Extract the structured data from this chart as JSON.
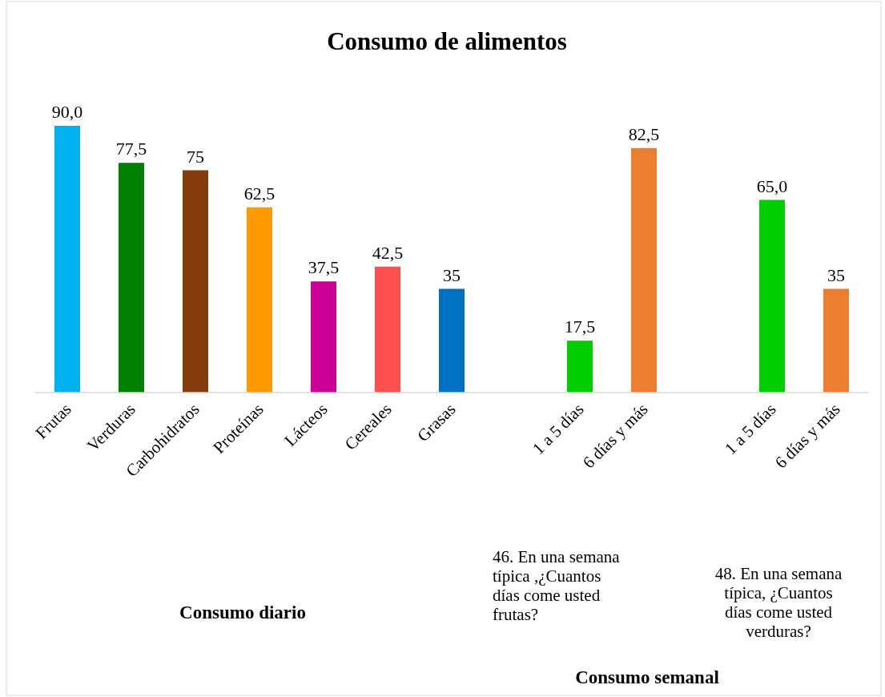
{
  "chart_data": {
    "type": "bar",
    "title": "Consumo de alimentos",
    "categories": [
      "Frutas",
      "Verduras",
      "Carbohidratos",
      "Proteínas",
      "Lácteos",
      "Cereales",
      "Grasas",
      null,
      "1 a 5 días",
      "6 días y más",
      null,
      "1 a 5 días",
      "6 días y más"
    ],
    "values": [
      90.0,
      77.5,
      75,
      62.5,
      37.5,
      42.5,
      35,
      null,
      17.5,
      82.5,
      null,
      65.0,
      35
    ],
    "value_labels": [
      "90,0",
      "77,5",
      "75",
      "62,5",
      "37,5",
      "42,5",
      "35",
      null,
      "17,5",
      "82,5",
      null,
      "65,0",
      "35"
    ],
    "colors": [
      "#00b0f0",
      "#008000",
      "#843c0c",
      "#ff9900",
      "#cc0099",
      "#ff5050",
      "#0070c0",
      null,
      "#00cc00",
      "#ed7d31",
      null,
      "#00cc00",
      "#ed7d31"
    ],
    "annotations": [
      "Consumo diario",
      "Consumo semanal",
      "46. En una semana típica ,¿Cuantos días come usted frutas?",
      "48. En una semana típica, ¿Cuantos días come usted verduras?"
    ]
  }
}
